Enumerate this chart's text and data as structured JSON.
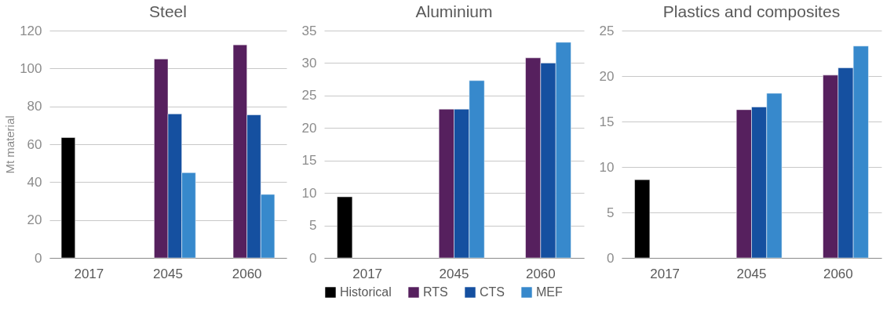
{
  "chart_data": [
    {
      "type": "bar",
      "title": "Steel",
      "ylabel": "Mt material",
      "categories": [
        "2017",
        "2045",
        "2060"
      ],
      "ylim": [
        0,
        120
      ],
      "yticks": [
        0,
        20,
        40,
        60,
        80,
        100,
        120
      ],
      "grid": "y",
      "series": [
        {
          "color": "#000000",
          "values": [
            63.5,
            null,
            null
          ]
        },
        {
          "color": "#56205e",
          "values": [
            null,
            105,
            112.5
          ]
        },
        {
          "color": "#1550a0",
          "values": [
            null,
            76,
            75.5
          ]
        },
        {
          "color": "#3789cc",
          "values": [
            null,
            45,
            33.5
          ]
        }
      ]
    },
    {
      "type": "bar",
      "title": "Aluminium",
      "categories": [
        "2017",
        "2045",
        "2060"
      ],
      "ylim": [
        0,
        35
      ],
      "yticks": [
        0,
        5,
        10,
        15,
        20,
        25,
        30,
        35
      ],
      "grid": "y",
      "legend": "bottom",
      "series": [
        {
          "name": "Historical",
          "color": "#000000",
          "values": [
            9.4,
            null,
            null
          ]
        },
        {
          "name": "RTS",
          "color": "#56205e",
          "values": [
            null,
            22.9,
            30.8
          ]
        },
        {
          "name": "CTS",
          "color": "#1550a0",
          "values": [
            null,
            22.9,
            30
          ]
        },
        {
          "name": "MEF",
          "color": "#3789cc",
          "values": [
            null,
            27.3,
            33.2
          ]
        }
      ]
    },
    {
      "type": "bar",
      "title": "Plastics  and composites",
      "categories": [
        "2017",
        "2045",
        "2060"
      ],
      "ylim": [
        0,
        25
      ],
      "yticks": [
        0,
        5,
        10,
        15,
        20,
        25
      ],
      "grid": "y",
      "series": [
        {
          "color": "#000000",
          "values": [
            8.6,
            null,
            null
          ]
        },
        {
          "color": "#56205e",
          "values": [
            null,
            16.3,
            20.1
          ]
        },
        {
          "color": "#1550a0",
          "values": [
            null,
            16.6,
            20.9
          ]
        },
        {
          "color": "#3789cc",
          "values": [
            null,
            18.1,
            23.3
          ]
        }
      ]
    }
  ]
}
